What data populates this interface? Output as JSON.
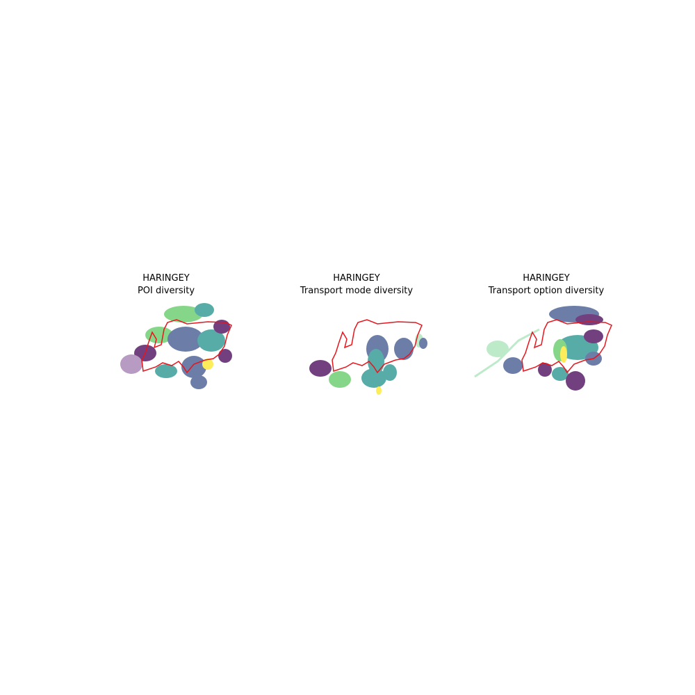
{
  "panels": [
    {
      "title": "HARINGEY",
      "subtitle": "POI diversity"
    },
    {
      "title": "HARINGEY",
      "subtitle": "Transport mode diversity"
    },
    {
      "title": "HARINGEY",
      "subtitle": "Transport option diversity"
    }
  ],
  "colors": {
    "boundary": "#e8141c",
    "colormap": [
      "#440154",
      "#3b528b",
      "#21918c",
      "#5ec962",
      "#a8e4b8",
      "#fde725"
    ]
  }
}
